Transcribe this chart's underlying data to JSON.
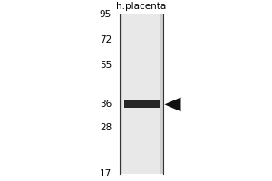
{
  "title": "h.placenta",
  "mw_markers": [
    95,
    72,
    55,
    36,
    28,
    17
  ],
  "band_mw": 36,
  "bg_color": "#ffffff",
  "lane_bg_color": "#d0d0d0",
  "lane_highlight_color": "#e8e8e8",
  "band_color": "#111111",
  "arrow_color": "#111111",
  "border_color": "#333333",
  "title_fontsize": 7.5,
  "marker_fontsize": 7.5,
  "fig_width": 3.0,
  "fig_height": 2.0,
  "dpi": 100
}
